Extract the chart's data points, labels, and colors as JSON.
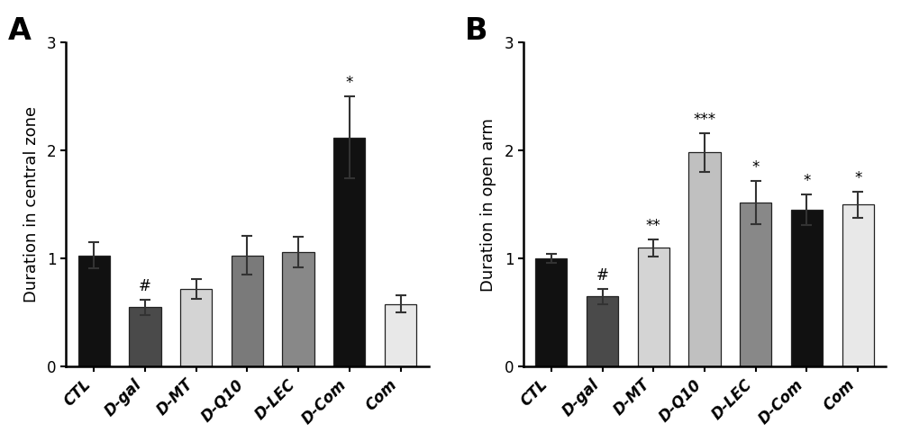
{
  "panel_A": {
    "title": "A",
    "ylabel": "Duration in central zone",
    "categories": [
      "CTL",
      "D-gal",
      "D-MT",
      "D-Q10",
      "D-LEC",
      "D-Com",
      "Com"
    ],
    "values": [
      1.03,
      0.55,
      0.72,
      1.03,
      1.06,
      2.12,
      0.58
    ],
    "errors": [
      0.12,
      0.07,
      0.09,
      0.18,
      0.14,
      0.38,
      0.08
    ],
    "colors": [
      "#111111",
      "#4a4a4a",
      "#d4d4d4",
      "#7a7a7a",
      "#888888",
      "#111111",
      "#e8e8e8"
    ],
    "annotations": [
      "",
      "#",
      "",
      "",
      "",
      "*",
      ""
    ],
    "ylim": [
      0,
      3
    ],
    "yticks": [
      0,
      1,
      2,
      3
    ]
  },
  "panel_B": {
    "title": "B",
    "ylabel": "Duration in open arm",
    "categories": [
      "CTL",
      "D-gal",
      "D-MT",
      "D-Q10",
      "D-LEC",
      "D-Com",
      "Com"
    ],
    "values": [
      1.0,
      0.65,
      1.1,
      1.98,
      1.52,
      1.45,
      1.5
    ],
    "errors": [
      0.04,
      0.07,
      0.08,
      0.18,
      0.2,
      0.14,
      0.12
    ],
    "colors": [
      "#111111",
      "#4a4a4a",
      "#d4d4d4",
      "#c0c0c0",
      "#888888",
      "#111111",
      "#e8e8e8"
    ],
    "annotations": [
      "",
      "#",
      "**",
      "***",
      "*",
      "*",
      "*"
    ],
    "ylim": [
      0,
      3
    ],
    "yticks": [
      0,
      1,
      2,
      3
    ]
  },
  "figure_bg": "#ffffff",
  "bar_width": 0.62,
  "annotation_fontsize": 12,
  "label_fontsize": 13,
  "tick_fontsize": 12,
  "panel_label_fontsize": 24
}
